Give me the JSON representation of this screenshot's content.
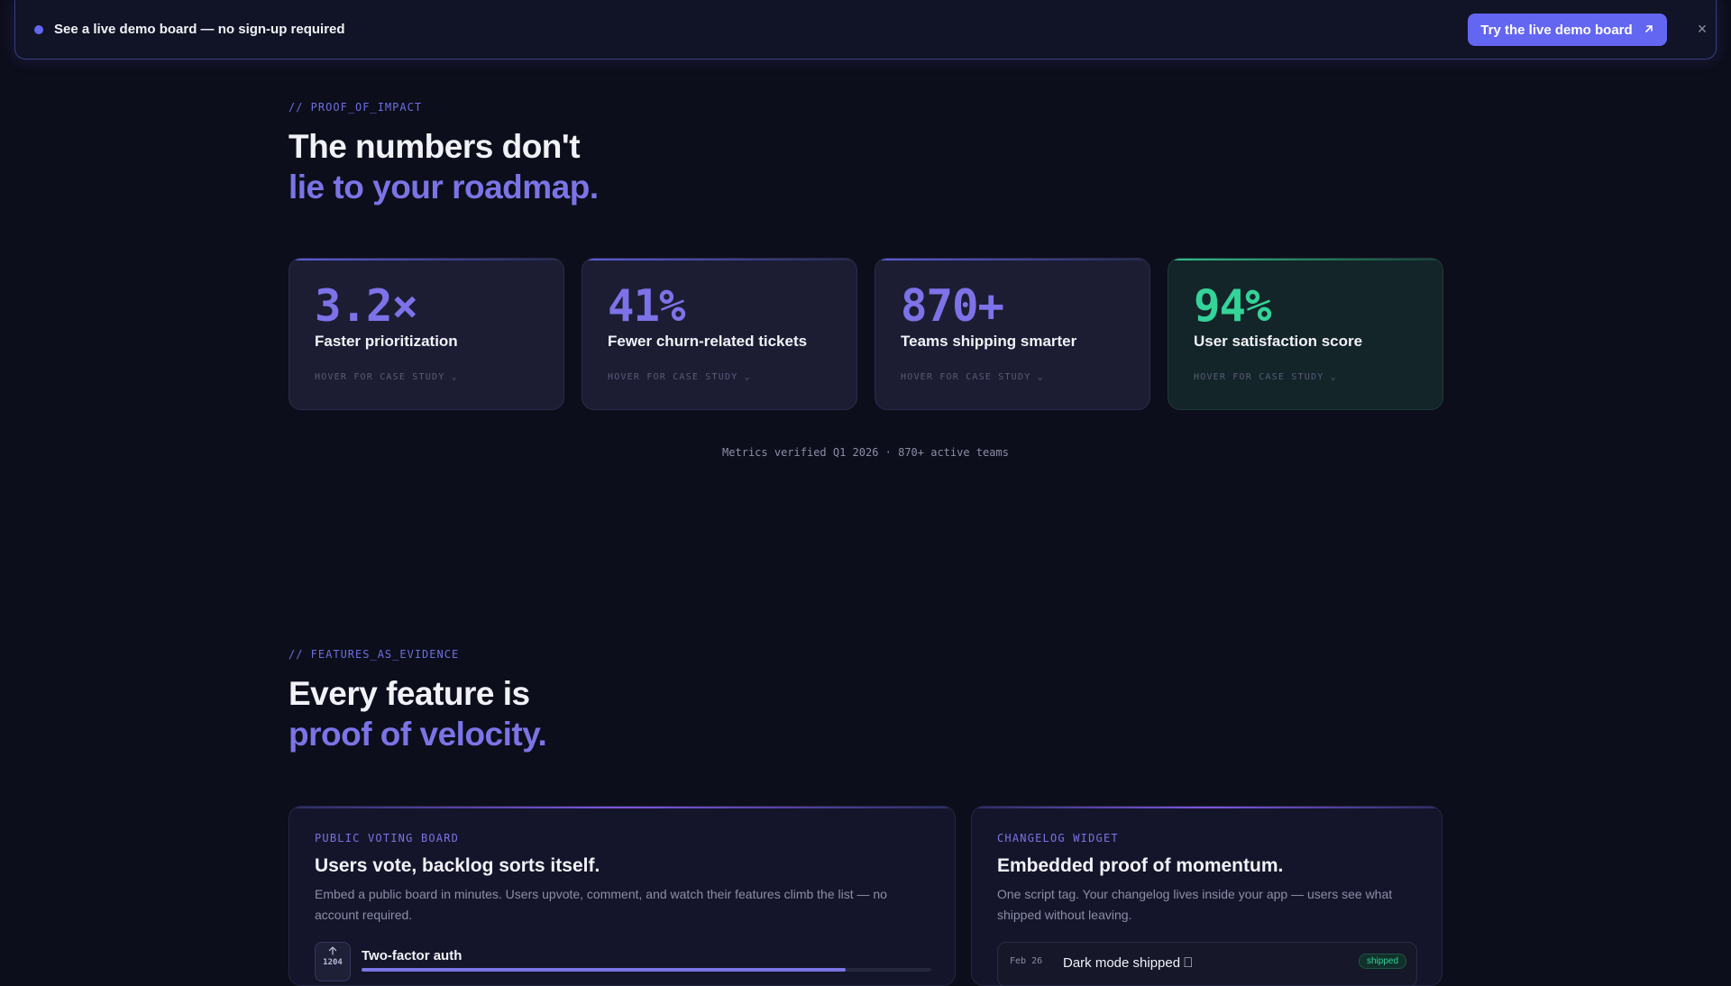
{
  "banner": {
    "text": "See a live demo board — no sign-up required",
    "cta_label": "Try the live demo board",
    "cta_icon": "arrow-up-right-icon",
    "close_label": "×"
  },
  "impact": {
    "eyebrow": "// PROOF_OF_IMPACT",
    "headline_line1": "The numbers don't",
    "headline_line2": "lie to your roadmap.",
    "stats": [
      {
        "value": "3.2×",
        "label": "Faster prioritization",
        "hint": "HOVER FOR CASE STUDY ⌄"
      },
      {
        "value": "41%",
        "label": "Fewer churn-related tickets",
        "hint": "HOVER FOR CASE STUDY ⌄"
      },
      {
        "value": "870+",
        "label": "Teams shipping smarter",
        "hint": "HOVER FOR CASE STUDY ⌄"
      },
      {
        "value": "94%",
        "label": "User satisfaction score",
        "hint": "HOVER FOR CASE STUDY ⌄"
      }
    ],
    "note": "Metrics verified Q1 2026 · 870+ active teams"
  },
  "features": {
    "eyebrow": "// FEATURES_AS_EVIDENCE",
    "headline_line1": "Every feature is",
    "headline_line2": "proof of velocity.",
    "voting": {
      "eyebrow": "PUBLIC VOTING BOARD",
      "title": "Users vote, backlog sorts itself.",
      "desc_line1": "Embed a public board in minutes. Users upvote, comment, and watch their features climb the list — no",
      "desc_line2": "account required.",
      "item": {
        "title": "Two-factor auth",
        "votes": "1204",
        "progress": 0.85
      }
    },
    "changelog": {
      "eyebrow": "CHANGELOG WIDGET",
      "title": "Embedded proof of momentum.",
      "desc_line1": "One script tag. Your changelog lives inside your app — users see what",
      "desc_line2": "shipped without leaving.",
      "item": {
        "date": "Feb 26",
        "title": "Dark mode shipped ⎕",
        "badge": "shipped"
      }
    }
  },
  "colors": {
    "accent": "#6366f1",
    "accent_text": "#7b74e6",
    "success": "#34d399",
    "background": "#0d0e1b"
  }
}
